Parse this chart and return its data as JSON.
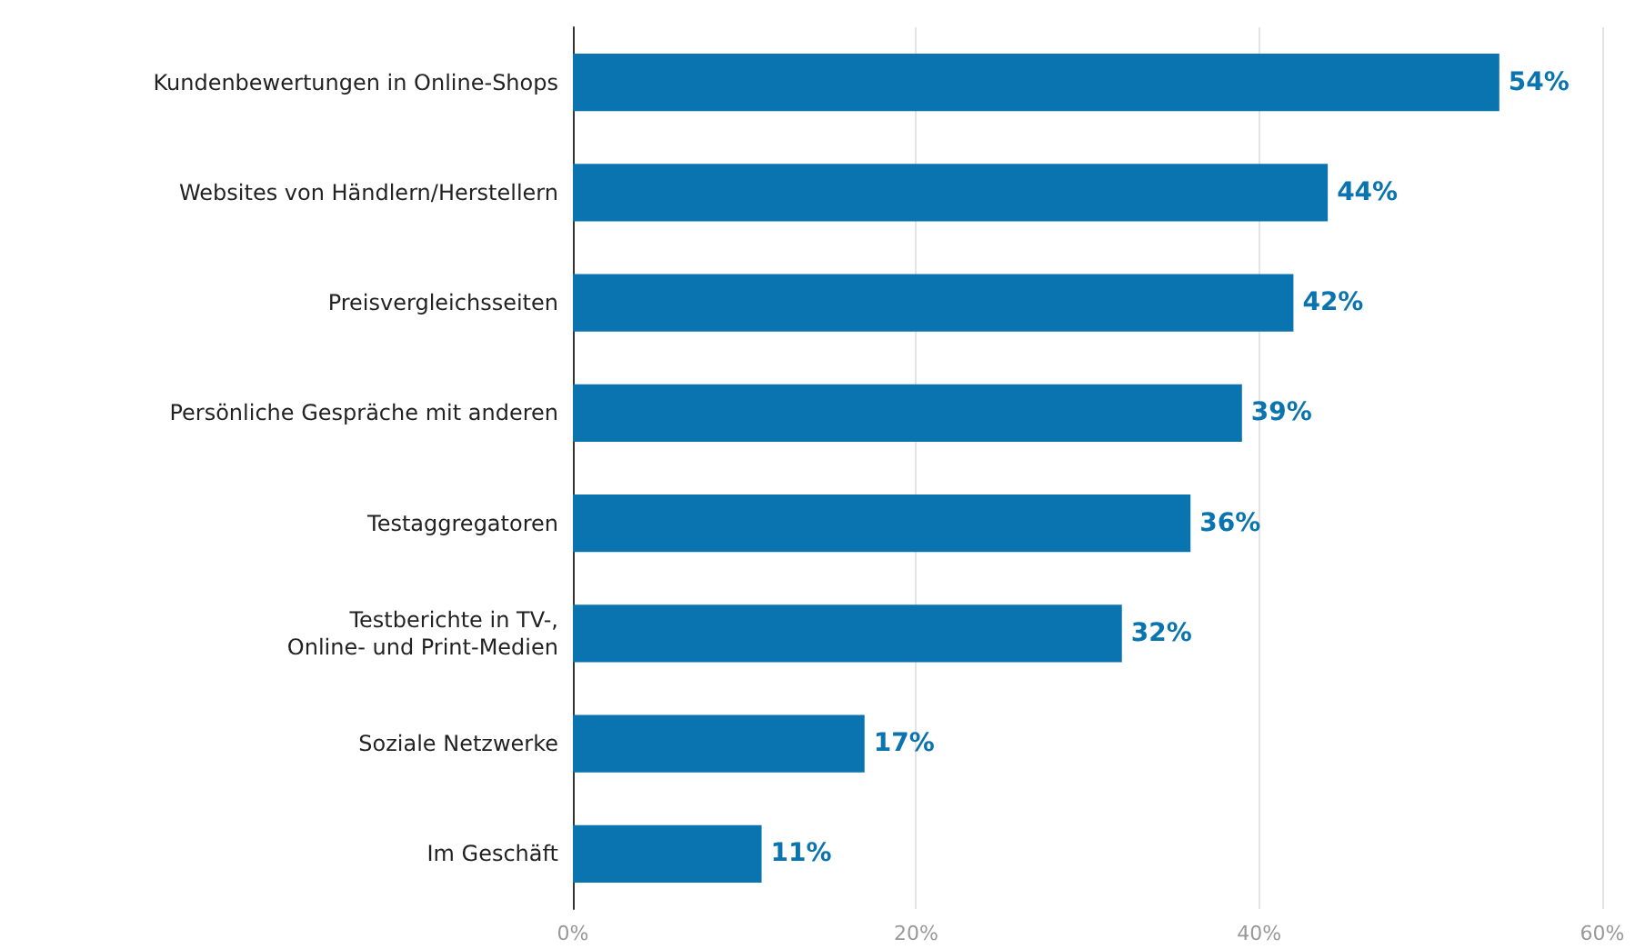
{
  "chart_data": {
    "type": "bar",
    "orientation": "horizontal",
    "categories": [
      "Kundenbewertungen in Online-Shops",
      "Websites von Händlern/Herstellern",
      "Preisvergleichsseiten",
      "Persönliche Gespräche mit anderen",
      "Testaggregatoren",
      "Testberichte in TV-,\nOnline- und Print-Medien",
      "Soziale Netzwerke",
      "Im Geschäft"
    ],
    "values": [
      54,
      44,
      42,
      39,
      36,
      32,
      17,
      11
    ],
    "value_labels": [
      "54%",
      "44%",
      "42%",
      "39%",
      "36%",
      "32%",
      "17%",
      "11%"
    ],
    "color": "#0a74b0",
    "xlim": [
      0,
      60
    ],
    "xticks": [
      {
        "value": 0,
        "label": "0%"
      },
      {
        "value": 20,
        "label": "20%"
      },
      {
        "value": 40,
        "label": "40%"
      },
      {
        "value": 60,
        "label": "60%"
      }
    ],
    "grid": "x"
  }
}
